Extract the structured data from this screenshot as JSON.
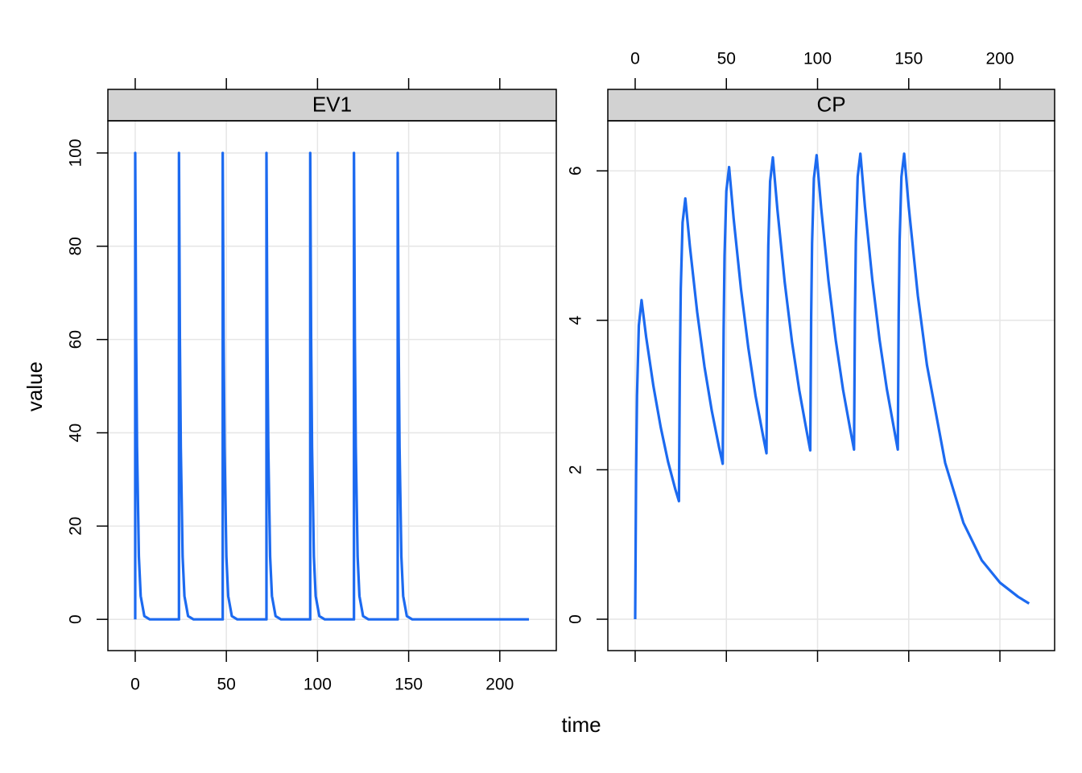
{
  "x_label": "time",
  "y_label": "value",
  "chart_data": [
    {
      "type": "line",
      "strip": "EV1",
      "color": "#1c6af0",
      "xlim": [
        -15,
        231
      ],
      "ylim": [
        -6.7,
        106.9
      ],
      "xticks": [
        0,
        50,
        100,
        150,
        200
      ],
      "yticks": [
        0,
        20,
        40,
        60,
        80,
        100
      ],
      "x_tick_labels": "bottom",
      "grid": true,
      "x": [
        0,
        0,
        0.5,
        1,
        2,
        3,
        5,
        8,
        24,
        24,
        24.5,
        25,
        26,
        27,
        29,
        32,
        48,
        48,
        48.5,
        49,
        50,
        51,
        53,
        56,
        72,
        72,
        72.5,
        73,
        74,
        75,
        77,
        80,
        96,
        96,
        96.5,
        97,
        98,
        99,
        101,
        104,
        120,
        120,
        120.5,
        121,
        122,
        123,
        125,
        128,
        144,
        144,
        144.5,
        145,
        146,
        147,
        149,
        152,
        216
      ],
      "values": [
        0,
        100,
        60,
        37,
        13.5,
        5,
        0.7,
        0,
        0,
        100,
        60,
        37,
        13.5,
        5,
        0.7,
        0,
        0,
        100,
        60,
        37,
        13.5,
        5,
        0.7,
        0,
        0,
        100,
        60,
        37,
        13.5,
        5,
        0.7,
        0,
        0,
        100,
        60,
        37,
        13.5,
        5,
        0.7,
        0,
        0,
        100,
        60,
        37,
        13.5,
        5,
        0.7,
        0,
        0,
        100,
        60,
        37,
        13.5,
        5,
        0.7,
        0,
        0
      ]
    },
    {
      "type": "line",
      "strip": "CP",
      "color": "#1c6af0",
      "xlim": [
        -15,
        230
      ],
      "ylim": [
        -0.42,
        6.67
      ],
      "xticks": [
        0,
        50,
        100,
        150,
        200
      ],
      "yticks": [
        0,
        2,
        4,
        6
      ],
      "x_tick_labels": "top",
      "grid": true,
      "x": [
        0,
        0.5,
        1,
        2,
        3.5,
        6,
        10,
        14,
        18,
        22,
        24,
        24.5,
        25,
        26,
        27.5,
        30,
        34,
        38,
        42,
        46,
        48,
        48.5,
        49,
        50,
        51.5,
        54,
        58,
        62,
        66,
        70,
        72,
        72.5,
        73,
        74,
        75.5,
        78,
        82,
        86,
        90,
        94,
        96,
        96.5,
        97,
        98,
        99.5,
        102,
        106,
        110,
        114,
        118,
        120,
        120.5,
        121,
        122,
        123.5,
        126,
        130,
        134,
        138,
        142,
        144,
        144.5,
        145,
        146,
        147.5,
        150,
        155,
        160,
        170,
        180,
        190,
        200,
        210,
        216
      ],
      "values": [
        0,
        1.92,
        2.99,
        3.93,
        4.27,
        3.78,
        3.12,
        2.57,
        2.11,
        1.74,
        1.58,
        3.4,
        4.42,
        5.31,
        5.63,
        4.99,
        4.11,
        3.38,
        2.79,
        2.3,
        2.08,
        3.87,
        4.86,
        5.73,
        6.05,
        5.36,
        4.42,
        3.64,
        2.99,
        2.47,
        2.22,
        4.01,
        5.0,
        5.86,
        6.18,
        5.48,
        4.51,
        3.71,
        3.06,
        2.52,
        2.26,
        4.05,
        5.03,
        5.9,
        6.21,
        5.5,
        4.53,
        3.73,
        3.07,
        2.53,
        2.27,
        4.07,
        5.05,
        5.92,
        6.23,
        5.52,
        4.55,
        3.74,
        3.08,
        2.54,
        2.27,
        4.08,
        5.06,
        5.92,
        6.23,
        5.52,
        4.33,
        3.4,
        2.09,
        1.29,
        0.79,
        0.49,
        0.3,
        0.21
      ]
    }
  ]
}
